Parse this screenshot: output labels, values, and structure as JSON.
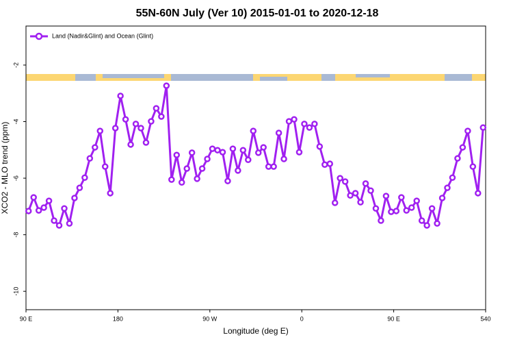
{
  "chart_data": {
    "type": "line",
    "title": "55N-60N July (Ver 10)   2015-01-01 to 2020-12-18",
    "x_label": "Longitude (deg E)",
    "y_label": "XCO2 - MLO trend (ppm)",
    "x": [
      92.5,
      97.5,
      102.5,
      107.5,
      112.5,
      117.5,
      122.5,
      127.5,
      132.5,
      137.5,
      142.5,
      147.5,
      152.5,
      157.5,
      162.5,
      167.5,
      172.5,
      177.5,
      182.5,
      187.5,
      192.5,
      197.5,
      202.5,
      207.5,
      212.5,
      217.5,
      222.5,
      227.5,
      232.5,
      237.5,
      242.5,
      247.5,
      252.5,
      257.5,
      262.5,
      267.5,
      272.5,
      277.5,
      282.5,
      287.5,
      292.5,
      297.5,
      302.5,
      307.5,
      312.5,
      317.5,
      322.5,
      327.5,
      332.5,
      337.5,
      342.5,
      347.5,
      352.5,
      357.5,
      362.5,
      367.5,
      372.5,
      377.5,
      382.5,
      387.5,
      392.5,
      397.5,
      402.5,
      407.5,
      412.5,
      417.5,
      422.5,
      427.5,
      432.5,
      437.5,
      442.5,
      447.5,
      452.5,
      457.5,
      462.5,
      467.5,
      472.5,
      477.5,
      482.5,
      487.5,
      492.5,
      497.5,
      502.5,
      507.5,
      512.5,
      517.5,
      522.5,
      527.5,
      532.5,
      537.5
    ],
    "series": [
      {
        "name": "Land (Nadir&Glint) and Ocean (Glint)",
        "color": "#a020f0",
        "values": [
          -7.16,
          -6.68,
          -7.14,
          -7.04,
          -6.8,
          -7.5,
          -7.67,
          -7.07,
          -7.6,
          -6.7,
          -6.34,
          -5.98,
          -5.3,
          -4.91,
          -4.33,
          -5.59,
          -6.53,
          -4.23,
          -3.09,
          -3.92,
          -4.81,
          -4.08,
          -4.23,
          -4.74,
          -3.99,
          -3.53,
          -3.82,
          -2.73,
          -6.05,
          -5.18,
          -6.15,
          -5.66,
          -5.1,
          -6.02,
          -5.66,
          -5.32,
          -4.96,
          -5.01,
          -5.08,
          -6.1,
          -4.96,
          -5.73,
          -5.01,
          -5.35,
          -4.33,
          -5.1,
          -4.91,
          -5.59,
          -5.59,
          -4.4,
          -5.32,
          -3.99,
          -3.92,
          -5.08,
          -4.08,
          -4.21,
          -4.08,
          -4.88,
          -5.52,
          -5.49,
          -6.87,
          -6.0,
          -6.12,
          -6.61,
          -6.53,
          -6.85,
          -6.19,
          -6.44,
          -7.07,
          -7.5,
          -6.63,
          -7.19,
          -7.16,
          -6.68,
          -7.14,
          -7.04,
          -6.8,
          -7.5,
          -7.67,
          -7.07,
          -7.6,
          -6.7,
          -6.34,
          -5.98,
          -5.3,
          -4.91,
          -4.33,
          -5.59,
          -6.53,
          -4.21
        ]
      }
    ],
    "xlim": [
      90,
      540
    ],
    "xticks": [
      {
        "value": 90,
        "label": "90 E"
      },
      180,
      {
        "value": 270,
        "label": "90 W"
      },
      {
        "value": 360,
        "label": "0"
      },
      {
        "value": 450,
        "label": "90 E"
      },
      540
    ],
    "ylim": [
      -10.65,
      -0.62
    ],
    "yticks": [
      -2,
      -4,
      -6,
      -8,
      -10
    ],
    "legend": "upper left"
  }
}
